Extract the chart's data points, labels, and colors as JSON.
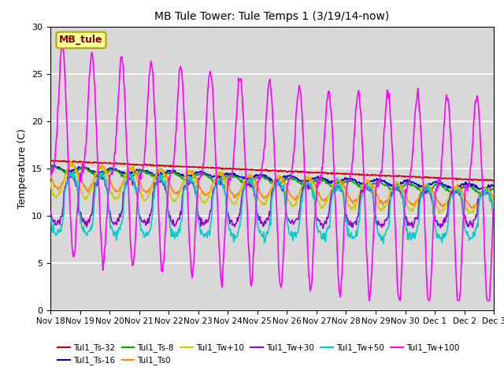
{
  "title": "MB Tule Tower: Tule Temps 1 (3/19/14-now)",
  "ylabel": "Temperature (C)",
  "ylim": [
    0,
    30
  ],
  "yticks": [
    0,
    5,
    10,
    15,
    20,
    25,
    30
  ],
  "xtick_labels": [
    "Nov 18",
    "Nov 19",
    "Nov 20",
    "Nov 21",
    "Nov 22",
    "Nov 23",
    "Nov 24",
    "Nov 25",
    "Nov 26",
    "Nov 27",
    "Nov 28",
    "Nov 29",
    "Nov 30",
    "Dec 1",
    "Dec 2",
    "Dec 3"
  ],
  "bg_color": "#d8d8d8",
  "series": [
    {
      "label": "Tul1_Ts-32",
      "color": "#cc0000",
      "lw": 1.2
    },
    {
      "label": "Tul1_Ts-16",
      "color": "#0000cc",
      "lw": 1.2
    },
    {
      "label": "Tul1_Ts-8",
      "color": "#00aa00",
      "lw": 1.2
    },
    {
      "label": "Tul1_Ts0",
      "color": "#ff8800",
      "lw": 1.2
    },
    {
      "label": "Tul1_Tw+10",
      "color": "#cccc00",
      "lw": 1.2
    },
    {
      "label": "Tul1_Tw+30",
      "color": "#9900cc",
      "lw": 1.2
    },
    {
      "label": "Tul1_Tw+50",
      "color": "#00cccc",
      "lw": 1.2
    },
    {
      "label": "Tul1_Tw+100",
      "color": "#ff00ff",
      "lw": 1.2
    }
  ],
  "station_box": {
    "text": "MB_tule",
    "facecolor": "#ffff99",
    "edgecolor": "#aaaa00",
    "textcolor": "#880000"
  },
  "n_days": 15,
  "pts_per_day": 48
}
